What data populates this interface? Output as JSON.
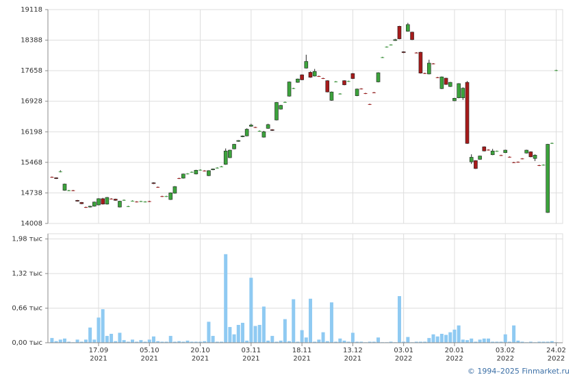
{
  "chart_data": [
    {
      "type": "candlestick",
      "categories": [
        null,
        null,
        null,
        null,
        null,
        null,
        null,
        null,
        null,
        null,
        null,
        "17.09\n2021",
        null,
        null,
        null,
        null,
        null,
        null,
        null,
        null,
        null,
        null,
        null,
        "05.10\n2021",
        null,
        null,
        null,
        null,
        null,
        null,
        null,
        null,
        null,
        null,
        null,
        "20.10\n2021",
        null,
        null,
        null,
        null,
        null,
        null,
        null,
        null,
        null,
        null,
        null,
        "03.11\n2021",
        null,
        null,
        null,
        null,
        null,
        null,
        null,
        null,
        null,
        null,
        null,
        "18.11\n2021",
        null,
        null,
        null,
        null,
        null,
        null,
        null,
        null,
        null,
        null,
        null,
        "13.12\n2021",
        null,
        null,
        null,
        null,
        null,
        null,
        null,
        null,
        null,
        null,
        null,
        "03.01\n2022",
        null,
        null,
        null,
        null,
        null,
        null,
        null,
        null,
        null,
        null,
        null,
        "20.01\n2022",
        null,
        null,
        null,
        null,
        null,
        null,
        null,
        null,
        null,
        null,
        null,
        "03.02\n2022",
        null,
        null,
        null,
        null,
        null,
        null,
        null,
        null,
        null,
        null,
        null,
        "24.02\n2022"
      ],
      "open": [
        15120,
        15100,
        15240,
        14800,
        14790,
        14800,
        14560,
        14510,
        14400,
        14400,
        14420,
        14450,
        14600,
        14470,
        14600,
        14590,
        14400,
        14560,
        14410,
        14540,
        14530,
        14530,
        14520,
        14540,
        14980,
        14880,
        14660,
        14650,
        14580,
        14730,
        15090,
        15090,
        15190,
        15230,
        15190,
        15280,
        15270,
        15150,
        15290,
        15330,
        15360,
        15420,
        15580,
        15790,
        15970,
        16080,
        16100,
        16330,
        16310,
        16210,
        16070,
        16280,
        16250,
        16480,
        16740,
        16900,
        17050,
        17230,
        17380,
        17560,
        17720,
        17620,
        17530,
        17530,
        17480,
        17420,
        16950,
        17390,
        17100,
        17420,
        17400,
        17590,
        17060,
        17230,
        17120,
        16860,
        17140,
        17390,
        17970,
        18220,
        18270,
        18380,
        18720,
        18110,
        18600,
        18580,
        18090,
        18100,
        17600,
        17580,
        17830,
        17500,
        17230,
        17480,
        17280,
        16940,
        17010,
        17010,
        17380,
        15480,
        15510,
        15540,
        15840,
        15770,
        15650,
        15730,
        15640,
        15700,
        15600,
        15470,
        15480,
        15560,
        15690,
        15720,
        15560,
        15400,
        15400,
        14270,
        15920,
        17660
      ],
      "high": [
        15130,
        15110,
        15280,
        14960,
        14810,
        14810,
        14570,
        14520,
        14410,
        14430,
        14530,
        14610,
        14620,
        14640,
        14610,
        14600,
        14550,
        14580,
        14430,
        14560,
        14540,
        14550,
        14540,
        14550,
        14990,
        14890,
        14670,
        14670,
        14750,
        14900,
        15100,
        15200,
        15210,
        15250,
        15290,
        15300,
        15280,
        15280,
        15320,
        15350,
        15380,
        15800,
        15770,
        15910,
        16000,
        16110,
        16280,
        16390,
        16320,
        16230,
        16220,
        16390,
        16260,
        16910,
        16840,
        16920,
        17400,
        17250,
        17470,
        17570,
        18040,
        17640,
        17700,
        17540,
        17490,
        17430,
        17160,
        17410,
        17120,
        17430,
        17420,
        17600,
        17230,
        17240,
        17130,
        16870,
        17150,
        17620,
        17990,
        18240,
        18290,
        18420,
        18730,
        18120,
        18800,
        18590,
        18100,
        18110,
        17610,
        17920,
        17840,
        17510,
        17520,
        17490,
        17390,
        17010,
        17360,
        17260,
        17410,
        15660,
        15520,
        15630,
        15850,
        15780,
        15790,
        15750,
        15650,
        15770,
        15610,
        15480,
        15490,
        15570,
        15770,
        15730,
        15660,
        15410,
        15420,
        15910,
        15940,
        17680
      ],
      "low": [
        15100,
        15070,
        15230,
        14790,
        14780,
        14780,
        14530,
        14470,
        14380,
        14390,
        14410,
        14440,
        14460,
        14460,
        14580,
        14550,
        14390,
        14550,
        14400,
        14530,
        14510,
        14520,
        14510,
        14520,
        14950,
        14860,
        14640,
        14640,
        14570,
        14720,
        15070,
        15080,
        15180,
        15220,
        15180,
        15270,
        15250,
        15140,
        15280,
        15320,
        15350,
        15410,
        15570,
        15780,
        15960,
        16070,
        16090,
        16320,
        16290,
        16200,
        16060,
        16270,
        16220,
        16470,
        16730,
        16890,
        17040,
        17220,
        17370,
        17430,
        17710,
        17490,
        17520,
        17510,
        17460,
        17140,
        16940,
        17380,
        17090,
        17310,
        17390,
        17460,
        17050,
        17210,
        17100,
        16840,
        17120,
        17380,
        17960,
        18210,
        18260,
        18370,
        18410,
        18080,
        18590,
        18390,
        18070,
        17590,
        17580,
        17570,
        17810,
        17480,
        17220,
        17320,
        17270,
        16930,
        17000,
        16960,
        15910,
        15430,
        15310,
        15530,
        15730,
        15750,
        15640,
        15720,
        15620,
        15690,
        15580,
        15450,
        15460,
        15540,
        15680,
        15590,
        15500,
        15380,
        15390,
        14260,
        15910,
        17650
      ],
      "close": [
        15110,
        15080,
        15250,
        14950,
        14800,
        14790,
        14540,
        14480,
        14390,
        14420,
        14520,
        14600,
        14470,
        14630,
        14590,
        14560,
        14540,
        14570,
        14420,
        14550,
        14520,
        14540,
        14530,
        14530,
        14960,
        14870,
        14650,
        14660,
        14740,
        14890,
        15080,
        15190,
        15200,
        15240,
        15280,
        15290,
        15260,
        15270,
        15310,
        15340,
        15370,
        15740,
        15760,
        15900,
        15990,
        16100,
        16260,
        16360,
        16300,
        16220,
        16200,
        16370,
        16230,
        16900,
        16830,
        16910,
        17390,
        17240,
        17460,
        17440,
        17880,
        17500,
        17640,
        17520,
        17470,
        17150,
        17150,
        17400,
        17110,
        17320,
        17410,
        17470,
        17220,
        17220,
        17110,
        16850,
        17130,
        17610,
        17980,
        18230,
        18280,
        18400,
        18420,
        18090,
        18760,
        18400,
        18080,
        17600,
        17590,
        17840,
        17820,
        17490,
        17510,
        17330,
        17380,
        17000,
        17350,
        17240,
        15920,
        15590,
        15320,
        15620,
        15740,
        15760,
        15740,
        15740,
        15630,
        15760,
        15590,
        15460,
        15470,
        15550,
        15760,
        15600,
        15640,
        15390,
        15410,
        15900,
        15930,
        17670
      ],
      "up_color": "#3ca33c",
      "down_color": "#a61b1b",
      "ylim": [
        14008,
        19118
      ],
      "yticks": [
        14008,
        14738,
        15468,
        16198,
        16928,
        17658,
        18388,
        19118
      ],
      "grid": true
    },
    {
      "type": "bar",
      "values": [
        90,
        30,
        60,
        80,
        20,
        10,
        60,
        20,
        60,
        290,
        60,
        480,
        640,
        130,
        170,
        30,
        190,
        50,
        20,
        60,
        20,
        50,
        20,
        60,
        120,
        30,
        20,
        20,
        130,
        20,
        30,
        20,
        40,
        20,
        20,
        20,
        30,
        400,
        130,
        20,
        20,
        1690,
        300,
        160,
        340,
        380,
        40,
        1240,
        320,
        340,
        690,
        40,
        130,
        20,
        40,
        450,
        30,
        830,
        20,
        240,
        100,
        840,
        20,
        60,
        200,
        30,
        770,
        20,
        80,
        40,
        20,
        190,
        20,
        20,
        10,
        20,
        20,
        100,
        10,
        10,
        20,
        10,
        890,
        20,
        110,
        10,
        20,
        20,
        20,
        90,
        160,
        120,
        170,
        150,
        200,
        250,
        330,
        60,
        50,
        80,
        20,
        60,
        80,
        80,
        20,
        20,
        20,
        160,
        20,
        330,
        40,
        20,
        10,
        20,
        10,
        20,
        20,
        20,
        30,
        10
      ],
      "color": "#8fcaf2",
      "ylim": [
        0,
        2080
      ],
      "yticks": [
        {
          "value": 0,
          "label": "0,00 тыс"
        },
        {
          "value": 660,
          "label": "0,66 тыс"
        },
        {
          "value": 1320,
          "label": "1,32 тыс"
        },
        {
          "value": 1980,
          "label": "1,98 тыс"
        }
      ],
      "grid": true
    }
  ],
  "footer": "© 1994–2025 Finmarket.ru"
}
